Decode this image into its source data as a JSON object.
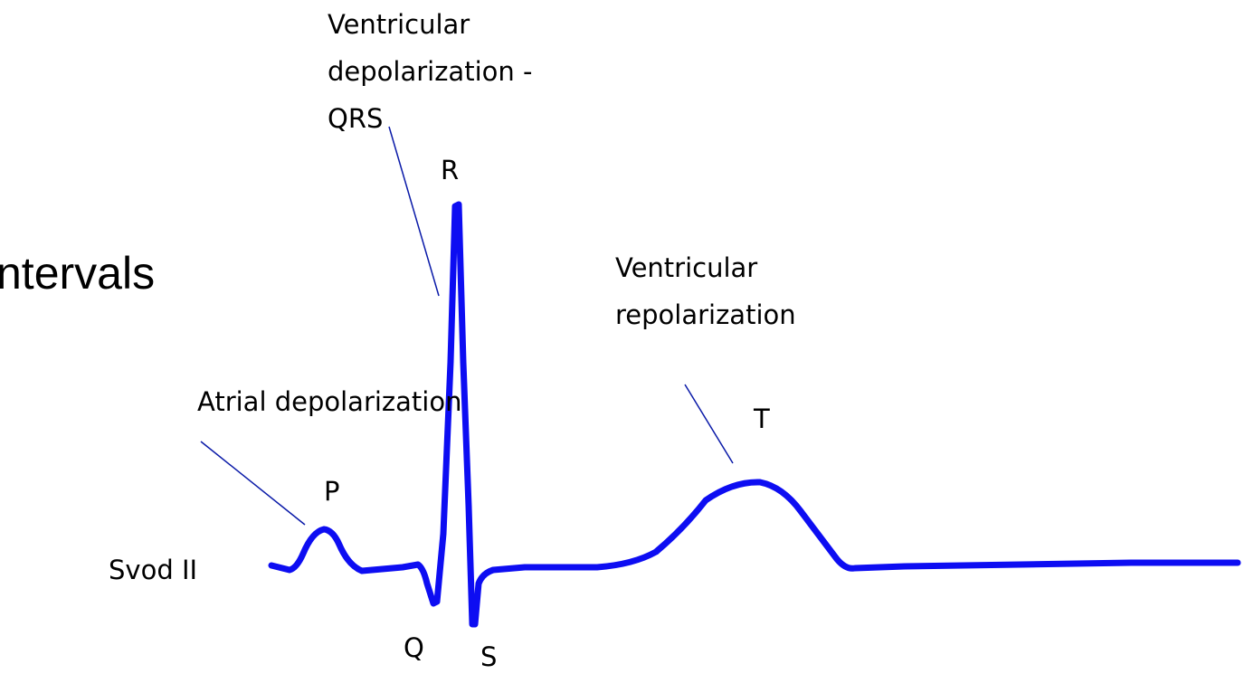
{
  "title": "ntervals",
  "labels": {
    "atrial": "Atrial depolarization",
    "p": "P",
    "lead": "Svod II",
    "qrs": [
      "Ventricular",
      "depolarization -",
      "QRS"
    ],
    "r": "R",
    "q": "Q",
    "s": "S",
    "repol": [
      "Ventricular",
      "repolarization"
    ],
    "t": "T"
  }
}
